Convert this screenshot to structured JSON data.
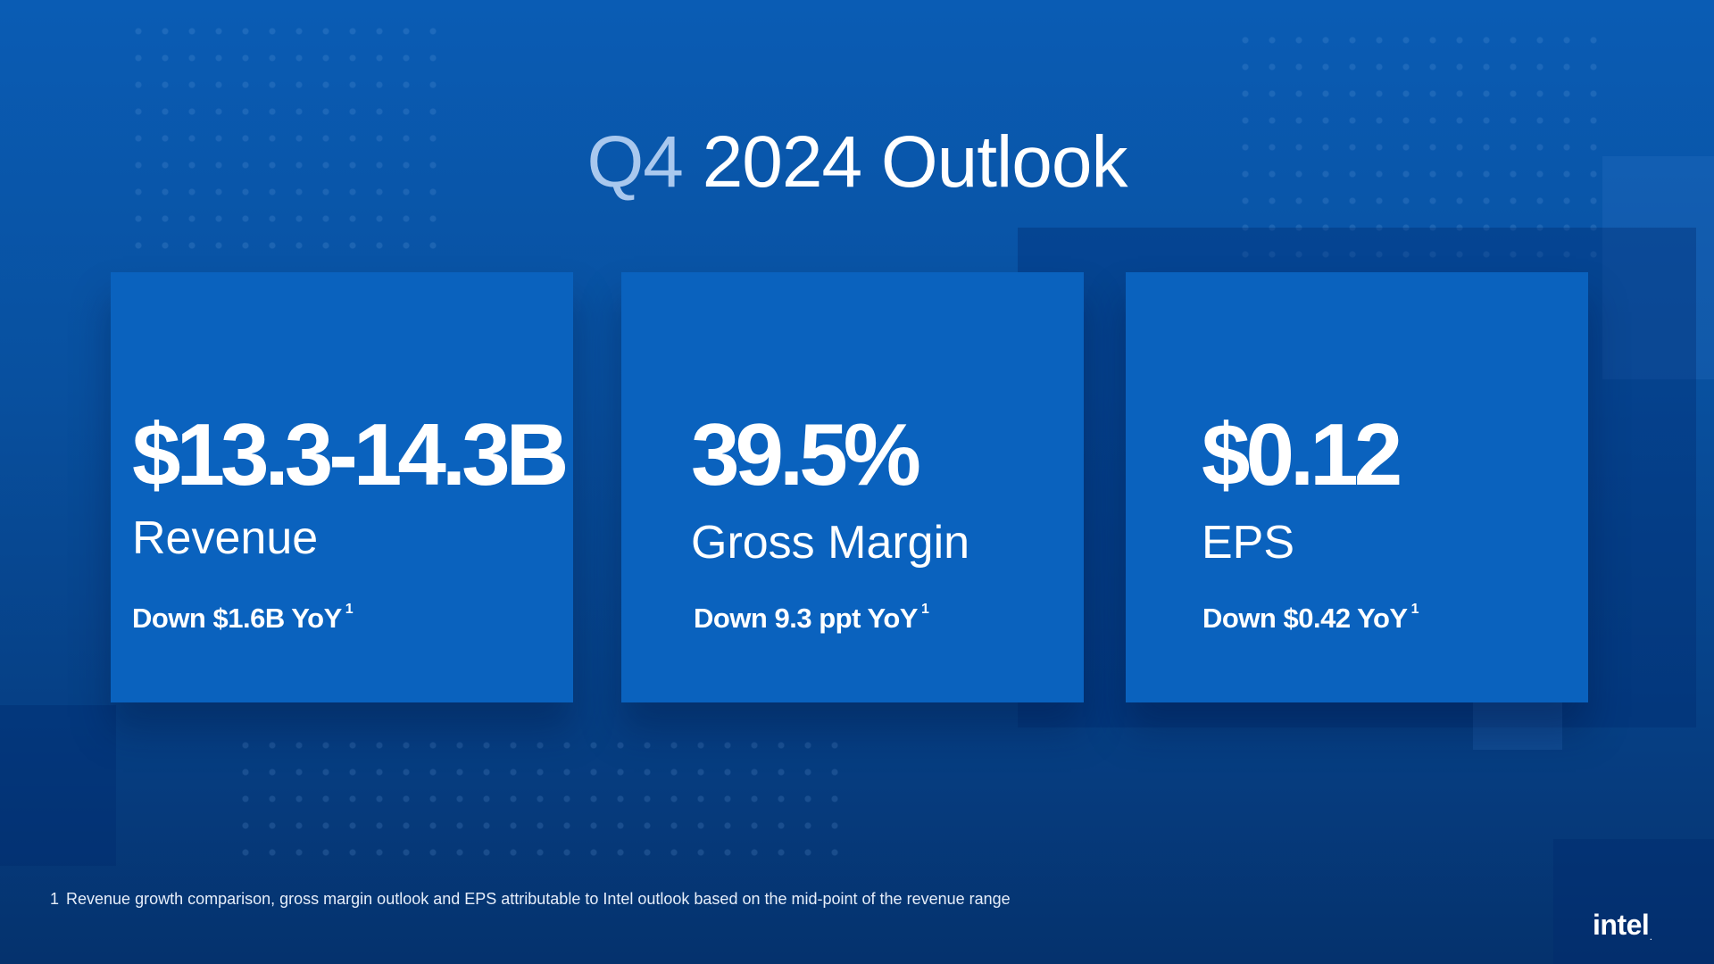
{
  "title": {
    "prefix": "Q4",
    "rest": "2024 Outlook"
  },
  "cards": [
    {
      "value": "$13.3-14.3B",
      "label": "Revenue",
      "delta": "Down $1.6B YoY",
      "footnote_ref": "1"
    },
    {
      "value": "39.5%",
      "label": "Gross Margin",
      "delta": "Down 9.3 ppt YoY",
      "footnote_ref": "1"
    },
    {
      "value": "$0.12",
      "label": "EPS",
      "delta": "Down $0.42 YoY",
      "footnote_ref": "1"
    }
  ],
  "footnote": {
    "number": "1",
    "text": "Revenue growth comparison, gross margin outlook and EPS attributable to Intel outlook based on the mid-point of the revenue range"
  },
  "logo": {
    "text": "intel",
    "mark": "."
  },
  "colors": {
    "background": "#0856a8",
    "card": "#0a62be",
    "title_accent": "#a9c8ee",
    "text": "#ffffff"
  }
}
